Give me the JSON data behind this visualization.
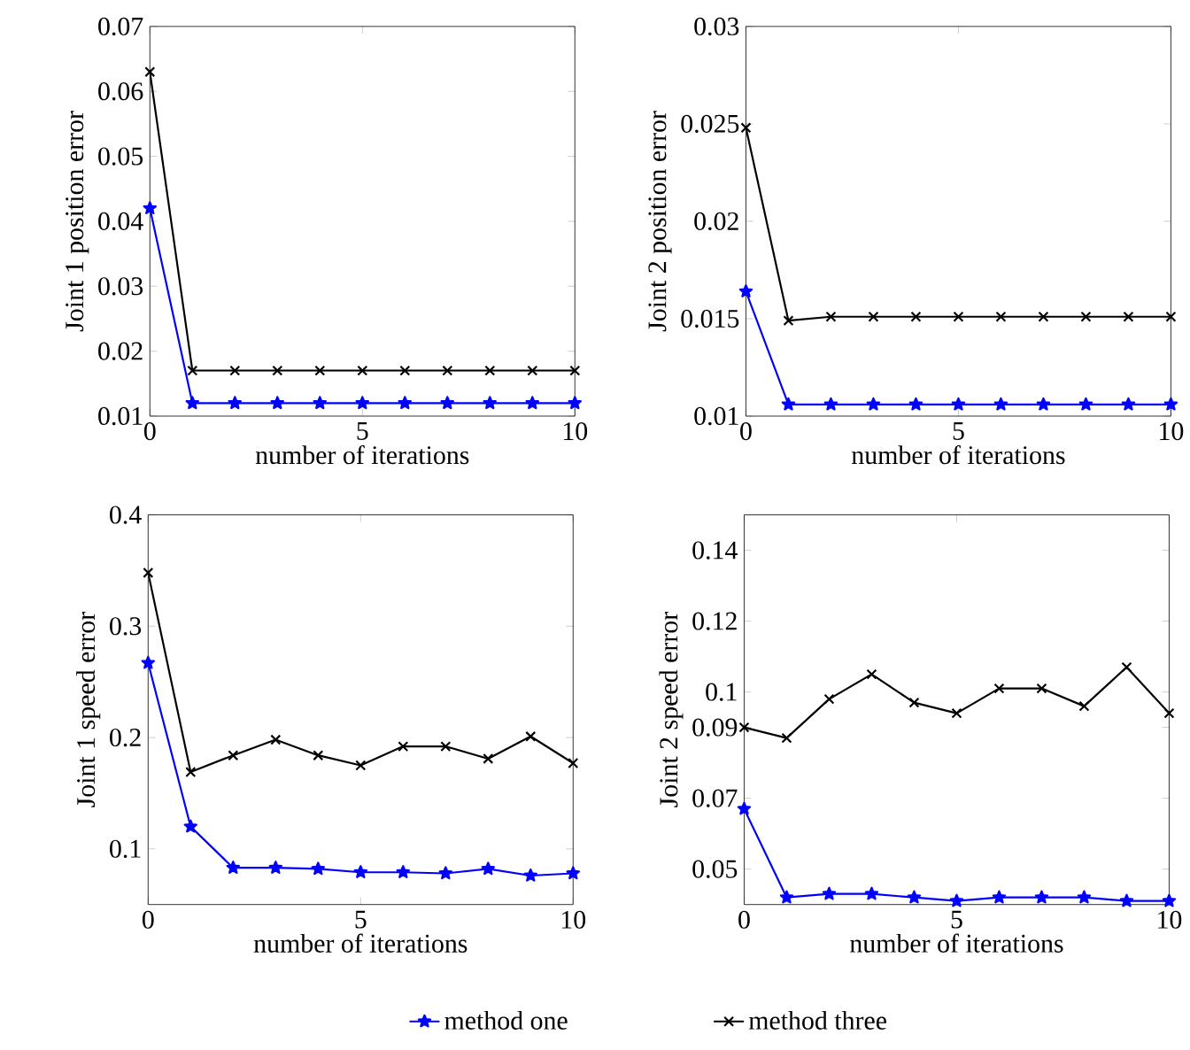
{
  "chart_data": [
    {
      "type": "line",
      "xlabel": "number of iterations",
      "ylabel": "Joint 1 position error",
      "x": [
        0,
        1,
        2,
        3,
        4,
        5,
        6,
        7,
        8,
        9,
        10
      ],
      "xlim": [
        0,
        10
      ],
      "xticks": [
        0,
        5,
        10
      ],
      "ylim": [
        0.01,
        0.07
      ],
      "yticks": [
        0.01,
        0.02,
        0.03,
        0.04,
        0.05,
        0.06,
        0.07
      ],
      "grid": false,
      "series": [
        {
          "color": "#0000ff",
          "marker": "star",
          "values": [
            0.042,
            0.012,
            0.012,
            0.012,
            0.012,
            0.012,
            0.012,
            0.012,
            0.012,
            0.012,
            0.012
          ]
        },
        {
          "color": "#000000",
          "marker": "cross",
          "values": [
            0.063,
            0.017,
            0.017,
            0.017,
            0.017,
            0.017,
            0.017,
            0.017,
            0.017,
            0.017,
            0.017
          ]
        }
      ]
    },
    {
      "type": "line",
      "xlabel": "number of iterations",
      "ylabel": "Joint 2 position error",
      "x": [
        0,
        1,
        2,
        3,
        4,
        5,
        6,
        7,
        8,
        9,
        10
      ],
      "xlim": [
        0,
        10
      ],
      "xticks": [
        0,
        5,
        10
      ],
      "ylim": [
        0.01,
        0.03
      ],
      "yticks": [
        0.01,
        0.015,
        0.02,
        0.025,
        0.03
      ],
      "grid": false,
      "series": [
        {
          "color": "#0000ff",
          "marker": "star",
          "values": [
            0.0164,
            0.0106,
            0.0106,
            0.0106,
            0.0106,
            0.0106,
            0.0106,
            0.0106,
            0.0106,
            0.0106,
            0.0106
          ]
        },
        {
          "color": "#000000",
          "marker": "cross",
          "values": [
            0.0248,
            0.0149,
            0.0151,
            0.0151,
            0.0151,
            0.0151,
            0.0151,
            0.0151,
            0.0151,
            0.0151,
            0.0151
          ]
        }
      ]
    },
    {
      "type": "line",
      "xlabel": "number of iterations",
      "ylabel": "Joint 1 speed error",
      "x": [
        0,
        1,
        2,
        3,
        4,
        5,
        6,
        7,
        8,
        9,
        10
      ],
      "xlim": [
        0,
        10
      ],
      "xticks": [
        0,
        5,
        10
      ],
      "ylim": [
        0.05,
        0.4
      ],
      "yticks": [
        0.1,
        0.2,
        0.3,
        0.4
      ],
      "grid": false,
      "legend": "bottom",
      "series": [
        {
          "name": "method one",
          "color": "#0000ff",
          "marker": "star",
          "values": [
            0.267,
            0.12,
            0.083,
            0.083,
            0.082,
            0.079,
            0.079,
            0.078,
            0.082,
            0.076,
            0.078
          ]
        },
        {
          "name": "method three",
          "color": "#000000",
          "marker": "cross",
          "values": [
            0.348,
            0.169,
            0.184,
            0.198,
            0.184,
            0.175,
            0.192,
            0.192,
            0.181,
            0.201,
            0.177
          ]
        }
      ]
    },
    {
      "type": "line",
      "xlabel": "number of iterations",
      "ylabel": "Joint 2 speed error",
      "x": [
        0,
        1,
        2,
        3,
        4,
        5,
        6,
        7,
        8,
        9,
        10
      ],
      "xlim": [
        0,
        10
      ],
      "xticks": [
        0,
        5,
        10
      ],
      "ylim": [
        0.04,
        0.15
      ],
      "yticks": [
        0.05,
        0.07,
        0.09,
        0.1,
        0.12,
        0.14
      ],
      "grid": false,
      "series": [
        {
          "color": "#0000ff",
          "marker": "star",
          "values": [
            0.067,
            0.042,
            0.043,
            0.043,
            0.042,
            0.041,
            0.042,
            0.042,
            0.042,
            0.041,
            0.041
          ]
        },
        {
          "color": "#000000",
          "marker": "cross",
          "values": [
            0.09,
            0.087,
            0.098,
            0.105,
            0.097,
            0.094,
            0.101,
            0.101,
            0.096,
            0.107,
            0.094
          ]
        }
      ]
    }
  ]
}
